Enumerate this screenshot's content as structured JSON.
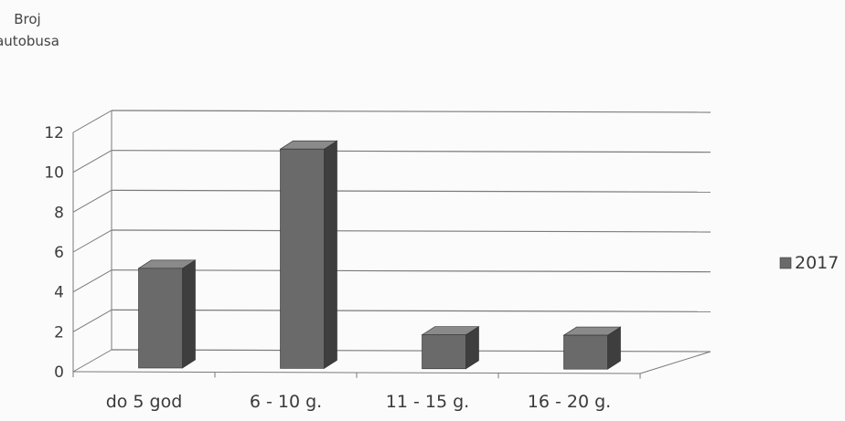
{
  "chart_data": {
    "type": "bar",
    "ylabel": "Broj autobusa",
    "ylabel_lines": [
      "Broj",
      "autobusa"
    ],
    "categories": [
      "do 5 god",
      "6 - 10 g.",
      "11 - 15 g.",
      "16 - 20 g."
    ],
    "series": [
      {
        "name": "2017",
        "values": [
          5,
          11,
          1.7,
          1.7
        ]
      }
    ],
    "ylim": [
      0,
      12
    ],
    "yticks": [
      "0",
      "2",
      "4",
      "6",
      "8",
      "10",
      "12"
    ],
    "grid": true,
    "legend_position": "right",
    "style": "3d-column",
    "colors": {
      "bar_front": "#6a6a6a",
      "bar_side": "#3e3e3e",
      "bar_top": "#8a8a8a",
      "grid": "#7a7a7a"
    }
  }
}
